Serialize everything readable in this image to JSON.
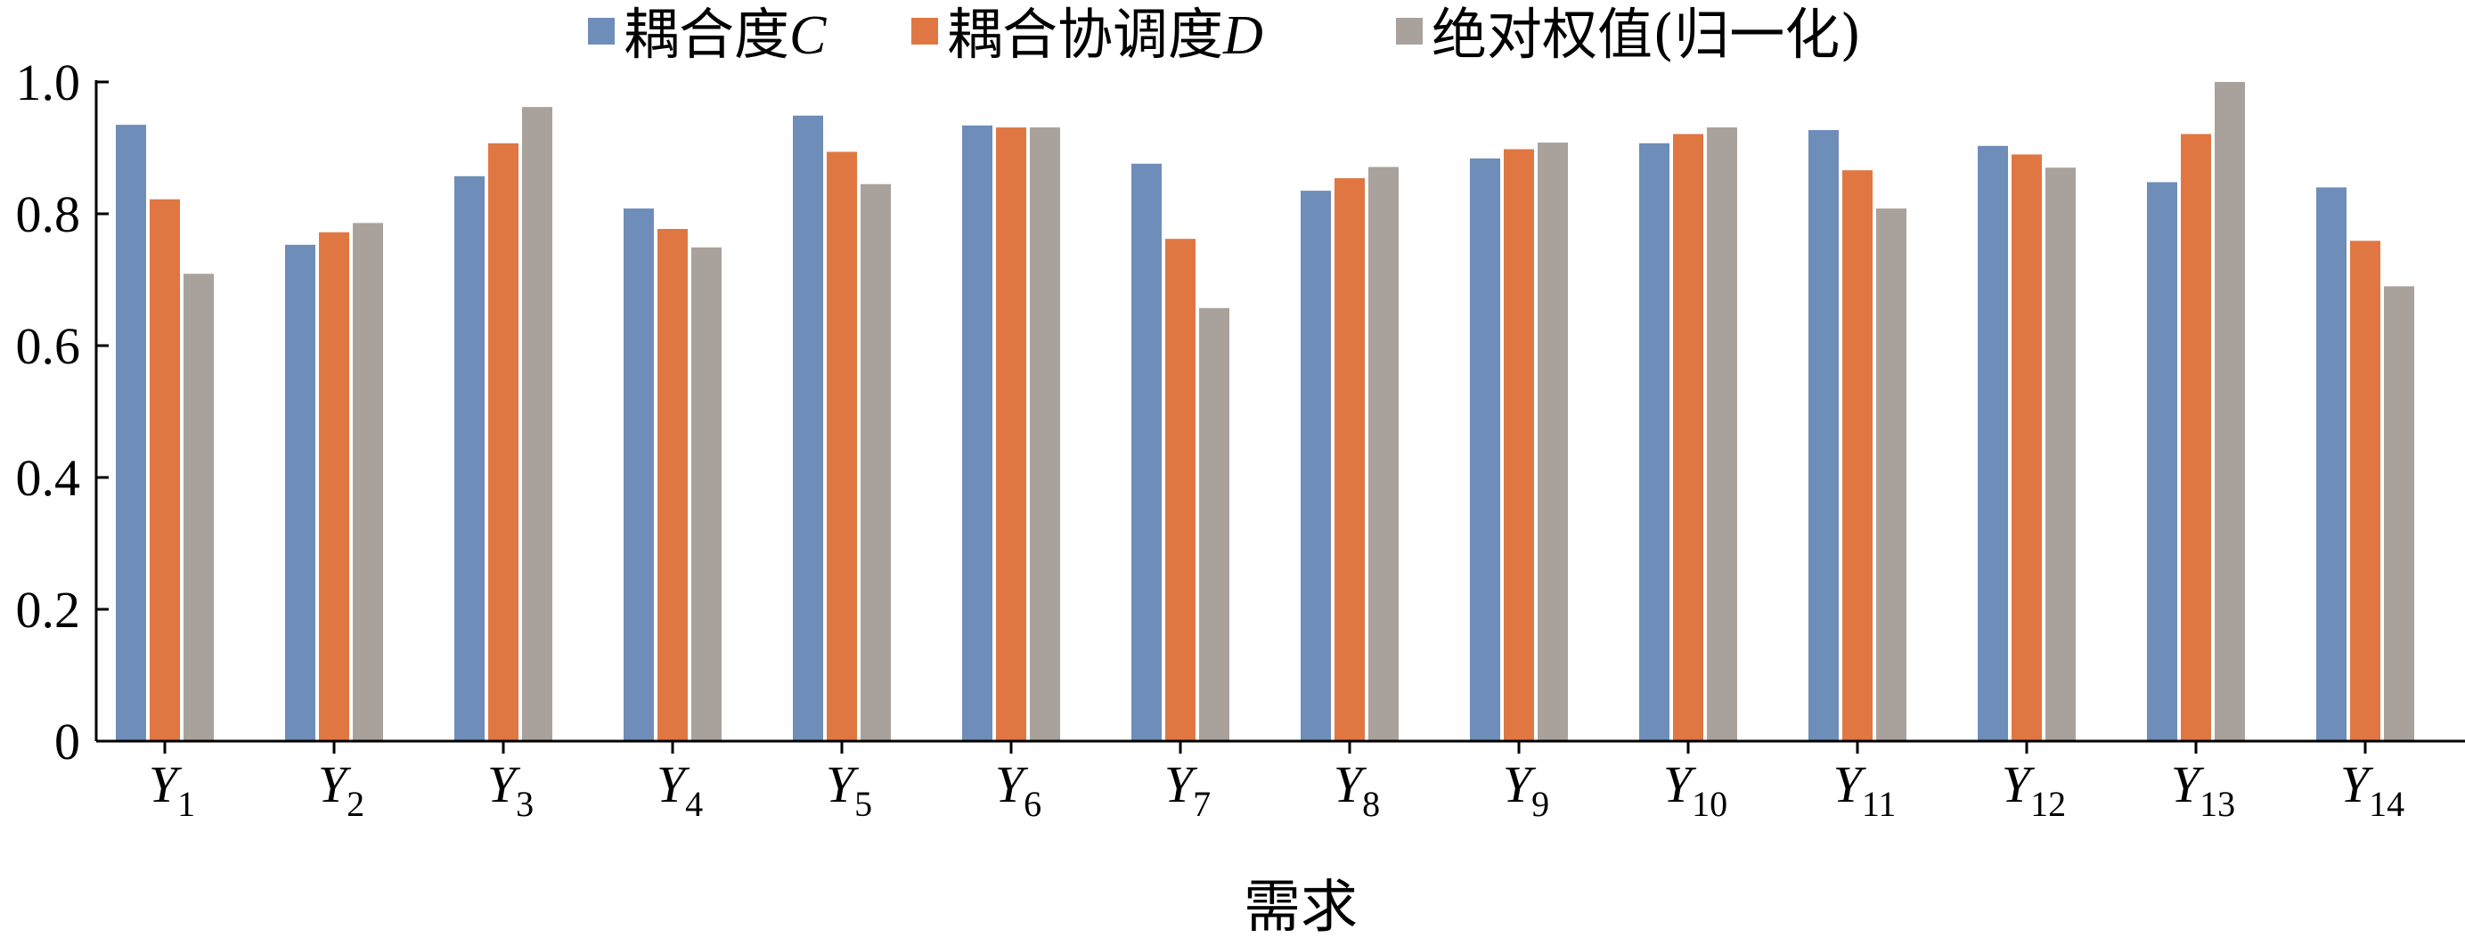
{
  "chart_data": {
    "type": "bar",
    "title": "",
    "xlabel": "需求",
    "ylabel": "",
    "ylim": [
      0,
      1.0
    ],
    "yticks": [
      0,
      0.2,
      0.4,
      0.6,
      0.8,
      1.0
    ],
    "ytick_labels": [
      "0",
      "0.2",
      "0.4",
      "0.6",
      "0.8",
      "1.0"
    ],
    "grid": false,
    "legend_position": "top",
    "categories": [
      "Y1",
      "Y2",
      "Y3",
      "Y4",
      "Y5",
      "Y6",
      "Y7",
      "Y8",
      "Y9",
      "Y10",
      "Y11",
      "Y12",
      "Y13",
      "Y14"
    ],
    "category_parts": [
      {
        "base": "Y",
        "sub": "1"
      },
      {
        "base": "Y",
        "sub": "2"
      },
      {
        "base": "Y",
        "sub": "3"
      },
      {
        "base": "Y",
        "sub": "4"
      },
      {
        "base": "Y",
        "sub": "5"
      },
      {
        "base": "Y",
        "sub": "6"
      },
      {
        "base": "Y",
        "sub": "7"
      },
      {
        "base": "Y",
        "sub": "8"
      },
      {
        "base": "Y",
        "sub": "9"
      },
      {
        "base": "Y",
        "sub": "10"
      },
      {
        "base": "Y",
        "sub": "11"
      },
      {
        "base": "Y",
        "sub": "12"
      },
      {
        "base": "Y",
        "sub": "13"
      },
      {
        "base": "Y",
        "sub": "14"
      }
    ],
    "series": [
      {
        "name": "耦合度C",
        "name_text": "耦合度",
        "name_italic": "C",
        "color": "#6E8DB9",
        "values": [
          0.935,
          0.753,
          0.857,
          0.808,
          0.949,
          0.934,
          0.876,
          0.835,
          0.884,
          0.907,
          0.927,
          0.903,
          0.848,
          0.84
        ]
      },
      {
        "name": "耦合协调度D",
        "name_text": "耦合协调度",
        "name_italic": "D",
        "color": "#E07743",
        "values": [
          0.822,
          0.772,
          0.907,
          0.777,
          0.894,
          0.931,
          0.762,
          0.854,
          0.898,
          0.921,
          0.866,
          0.89,
          0.921,
          0.759
        ]
      },
      {
        "name": "绝对权值(归一化)",
        "name_text": "绝对权值(归一化)",
        "name_italic": "",
        "color": "#A9A19B",
        "values": [
          0.709,
          0.786,
          0.962,
          0.749,
          0.845,
          0.931,
          0.657,
          0.871,
          0.908,
          0.931,
          0.808,
          0.87,
          1.0,
          0.69
        ]
      }
    ]
  }
}
